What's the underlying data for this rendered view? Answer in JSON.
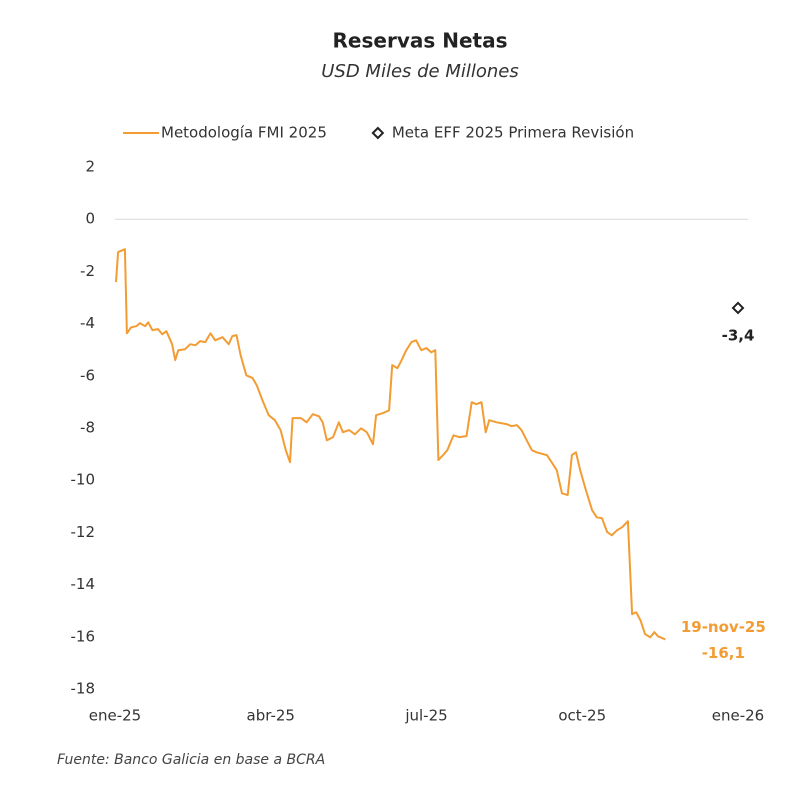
{
  "chart_data": {
    "type": "line",
    "title": "Reservas Netas",
    "subtitle": "USD Miles de Millones",
    "source": "Fuente: Banco Galicia en base a BCRA",
    "xlim": [
      0,
      12
    ],
    "xticks": [
      {
        "value": 0,
        "label": "ene-25"
      },
      {
        "value": 3,
        "label": "abr-25"
      },
      {
        "value": 6,
        "label": "jul-25"
      },
      {
        "value": 9,
        "label": "oct-25"
      },
      {
        "value": 12,
        "label": "ene-26"
      }
    ],
    "ylim": [
      -18,
      2
    ],
    "yticks": [
      2,
      0,
      -2,
      -4,
      -6,
      -8,
      -10,
      -12,
      -14,
      -16,
      -18
    ],
    "grid": "zero-line",
    "legend": "top",
    "series": [
      {
        "name": "Metodología FMI 2025",
        "color": "#f39c33",
        "marker": "none",
        "x": [
          0.02,
          0.06,
          0.14,
          0.19,
          0.23,
          0.31,
          0.41,
          0.48,
          0.58,
          0.64,
          0.72,
          0.83,
          0.91,
          0.99,
          1.1,
          1.16,
          1.22,
          1.35,
          1.45,
          1.55,
          1.64,
          1.74,
          1.84,
          1.93,
          2.07,
          2.19,
          2.26,
          2.34,
          2.42,
          2.53,
          2.65,
          2.73,
          2.84,
          2.96,
          3.08,
          3.19,
          3.29,
          3.37,
          3.42,
          3.58,
          3.69,
          3.81,
          3.93,
          4.0,
          4.08,
          4.2,
          4.31,
          4.39,
          4.51,
          4.62,
          4.74,
          4.85,
          4.97,
          5.03,
          5.16,
          5.28,
          5.34,
          5.44,
          5.51,
          5.61,
          5.71,
          5.8,
          5.9,
          6.0,
          6.09,
          6.17,
          6.23,
          6.32,
          6.4,
          6.52,
          6.63,
          6.77,
          6.87,
          6.96,
          7.06,
          7.14,
          7.21,
          7.35,
          7.54,
          7.64,
          7.74,
          7.83,
          7.93,
          8.03,
          8.12,
          8.32,
          8.41,
          8.51,
          8.61,
          8.72,
          8.8,
          8.88,
          8.96,
          9.07,
          9.19,
          9.28,
          9.38,
          9.48,
          9.57,
          9.67,
          9.77,
          9.88,
          9.96,
          10.04,
          10.12,
          10.21,
          10.31,
          10.39,
          10.46,
          10.54,
          10.6
        ],
        "values": [
          -2.41,
          -1.26,
          -1.19,
          -1.15,
          -4.37,
          -4.14,
          -4.1,
          -3.98,
          -4.1,
          -3.95,
          -4.25,
          -4.21,
          -4.41,
          -4.29,
          -4.79,
          -5.4,
          -5.02,
          -4.98,
          -4.79,
          -4.83,
          -4.67,
          -4.71,
          -4.37,
          -4.64,
          -4.52,
          -4.79,
          -4.48,
          -4.44,
          -5.21,
          -5.98,
          -6.09,
          -6.36,
          -6.93,
          -7.51,
          -7.7,
          -8.08,
          -8.85,
          -9.31,
          -7.62,
          -7.62,
          -7.78,
          -7.47,
          -7.55,
          -7.78,
          -8.47,
          -8.35,
          -7.78,
          -8.16,
          -8.08,
          -8.24,
          -8.01,
          -8.16,
          -8.62,
          -7.51,
          -7.43,
          -7.32,
          -5.59,
          -5.71,
          -5.44,
          -5.02,
          -4.71,
          -4.64,
          -5.02,
          -4.94,
          -5.1,
          -5.02,
          -9.23,
          -9.04,
          -8.85,
          -8.28,
          -8.35,
          -8.31,
          -7.01,
          -7.09,
          -7.01,
          -8.16,
          -7.7,
          -7.78,
          -7.85,
          -7.93,
          -7.89,
          -8.08,
          -8.47,
          -8.85,
          -8.93,
          -9.04,
          -9.31,
          -9.62,
          -10.5,
          -10.57,
          -9.04,
          -8.93,
          -9.62,
          -10.38,
          -11.15,
          -11.42,
          -11.46,
          -11.99,
          -12.11,
          -11.92,
          -11.8,
          -11.57,
          -15.13,
          -15.06,
          -15.36,
          -15.9,
          -16.02,
          -15.82,
          -15.98,
          -16.05,
          -16.1
        ]
      },
      {
        "name": "Meta EFF 2025 Primera Revisión",
        "color": "#222222",
        "marker": "diamond",
        "x": [
          12
        ],
        "values": [
          -3.4
        ],
        "value_labels": [
          "-3,4"
        ]
      }
    ],
    "annotations": [
      {
        "text": "19-nov-25"
      },
      {
        "text": "-16,1"
      }
    ]
  }
}
